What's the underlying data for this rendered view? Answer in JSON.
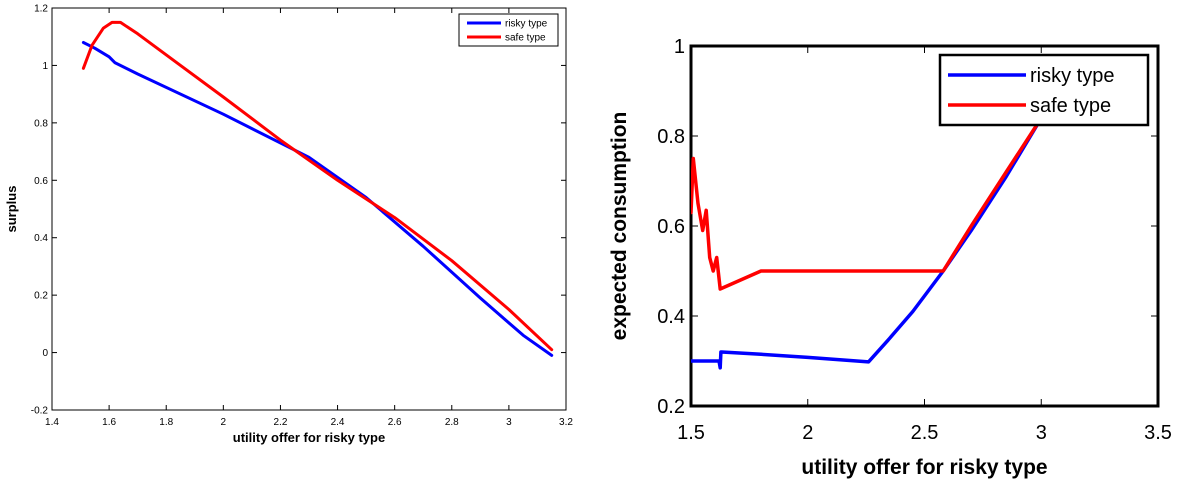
{
  "chart_data": [
    {
      "type": "line",
      "xlabel": "utility offer for risky type",
      "ylabel": "surplus",
      "xlim": [
        1.4,
        3.2
      ],
      "ylim": [
        -0.2,
        1.2
      ],
      "xticks": [
        "1.4",
        "1.6",
        "1.8",
        "2",
        "2.2",
        "2.4",
        "2.6",
        "2.8",
        "3",
        "3.2"
      ],
      "yticks": [
        "-0.2",
        "0",
        "0.2",
        "0.4",
        "0.6",
        "0.8",
        "1",
        "1.2"
      ],
      "legend_position": "top-right",
      "grid": false,
      "series": [
        {
          "name": "risky type",
          "color": "#0000ff",
          "x": [
            1.51,
            1.55,
            1.6,
            1.62,
            1.7,
            2.0,
            2.3,
            2.5,
            2.7,
            2.9,
            3.05,
            3.15
          ],
          "y": [
            1.08,
            1.06,
            1.03,
            1.01,
            0.97,
            0.83,
            0.68,
            0.54,
            0.37,
            0.19,
            0.06,
            -0.01
          ]
        },
        {
          "name": "safe type",
          "color": "#ff0000",
          "x": [
            1.51,
            1.54,
            1.58,
            1.61,
            1.64,
            1.7,
            1.85,
            2.0,
            2.2,
            2.4,
            2.6,
            2.8,
            3.0,
            3.15
          ],
          "y": [
            0.99,
            1.07,
            1.13,
            1.15,
            1.15,
            1.11,
            1.0,
            0.89,
            0.74,
            0.6,
            0.47,
            0.32,
            0.15,
            0.01
          ]
        }
      ]
    },
    {
      "type": "line",
      "xlabel": "utility offer for risky type",
      "ylabel": "expected consumption",
      "xlim": [
        1.5,
        3.5
      ],
      "ylim": [
        0.2,
        1.0
      ],
      "xticks": [
        "1.5",
        "2",
        "2.5",
        "3",
        "3.5"
      ],
      "yticks": [
        "0.2",
        "0.4",
        "0.6",
        "0.8",
        "1"
      ],
      "legend_position": "top-right",
      "grid": false,
      "series": [
        {
          "name": "risky type",
          "color": "#0000ff",
          "x": [
            1.5,
            1.62,
            1.625,
            1.628,
            1.632,
            1.8,
            2.0,
            2.26,
            2.35,
            2.45,
            2.58,
            2.7,
            2.85,
            3.0,
            3.08
          ],
          "y": [
            0.3,
            0.3,
            0.285,
            0.32,
            0.32,
            0.315,
            0.308,
            0.298,
            0.35,
            0.41,
            0.5,
            0.59,
            0.71,
            0.84,
            0.92
          ]
        },
        {
          "name": "safe type",
          "color": "#ff0000",
          "x": [
            1.5,
            1.51,
            1.53,
            1.55,
            1.565,
            1.58,
            1.595,
            1.61,
            1.625,
            1.8,
            2.2,
            2.58,
            2.7,
            2.85,
            3.0,
            3.08
          ],
          "y": [
            0.63,
            0.75,
            0.65,
            0.59,
            0.635,
            0.53,
            0.5,
            0.53,
            0.46,
            0.5,
            0.5,
            0.5,
            0.6,
            0.72,
            0.84,
            0.92
          ]
        }
      ]
    }
  ]
}
